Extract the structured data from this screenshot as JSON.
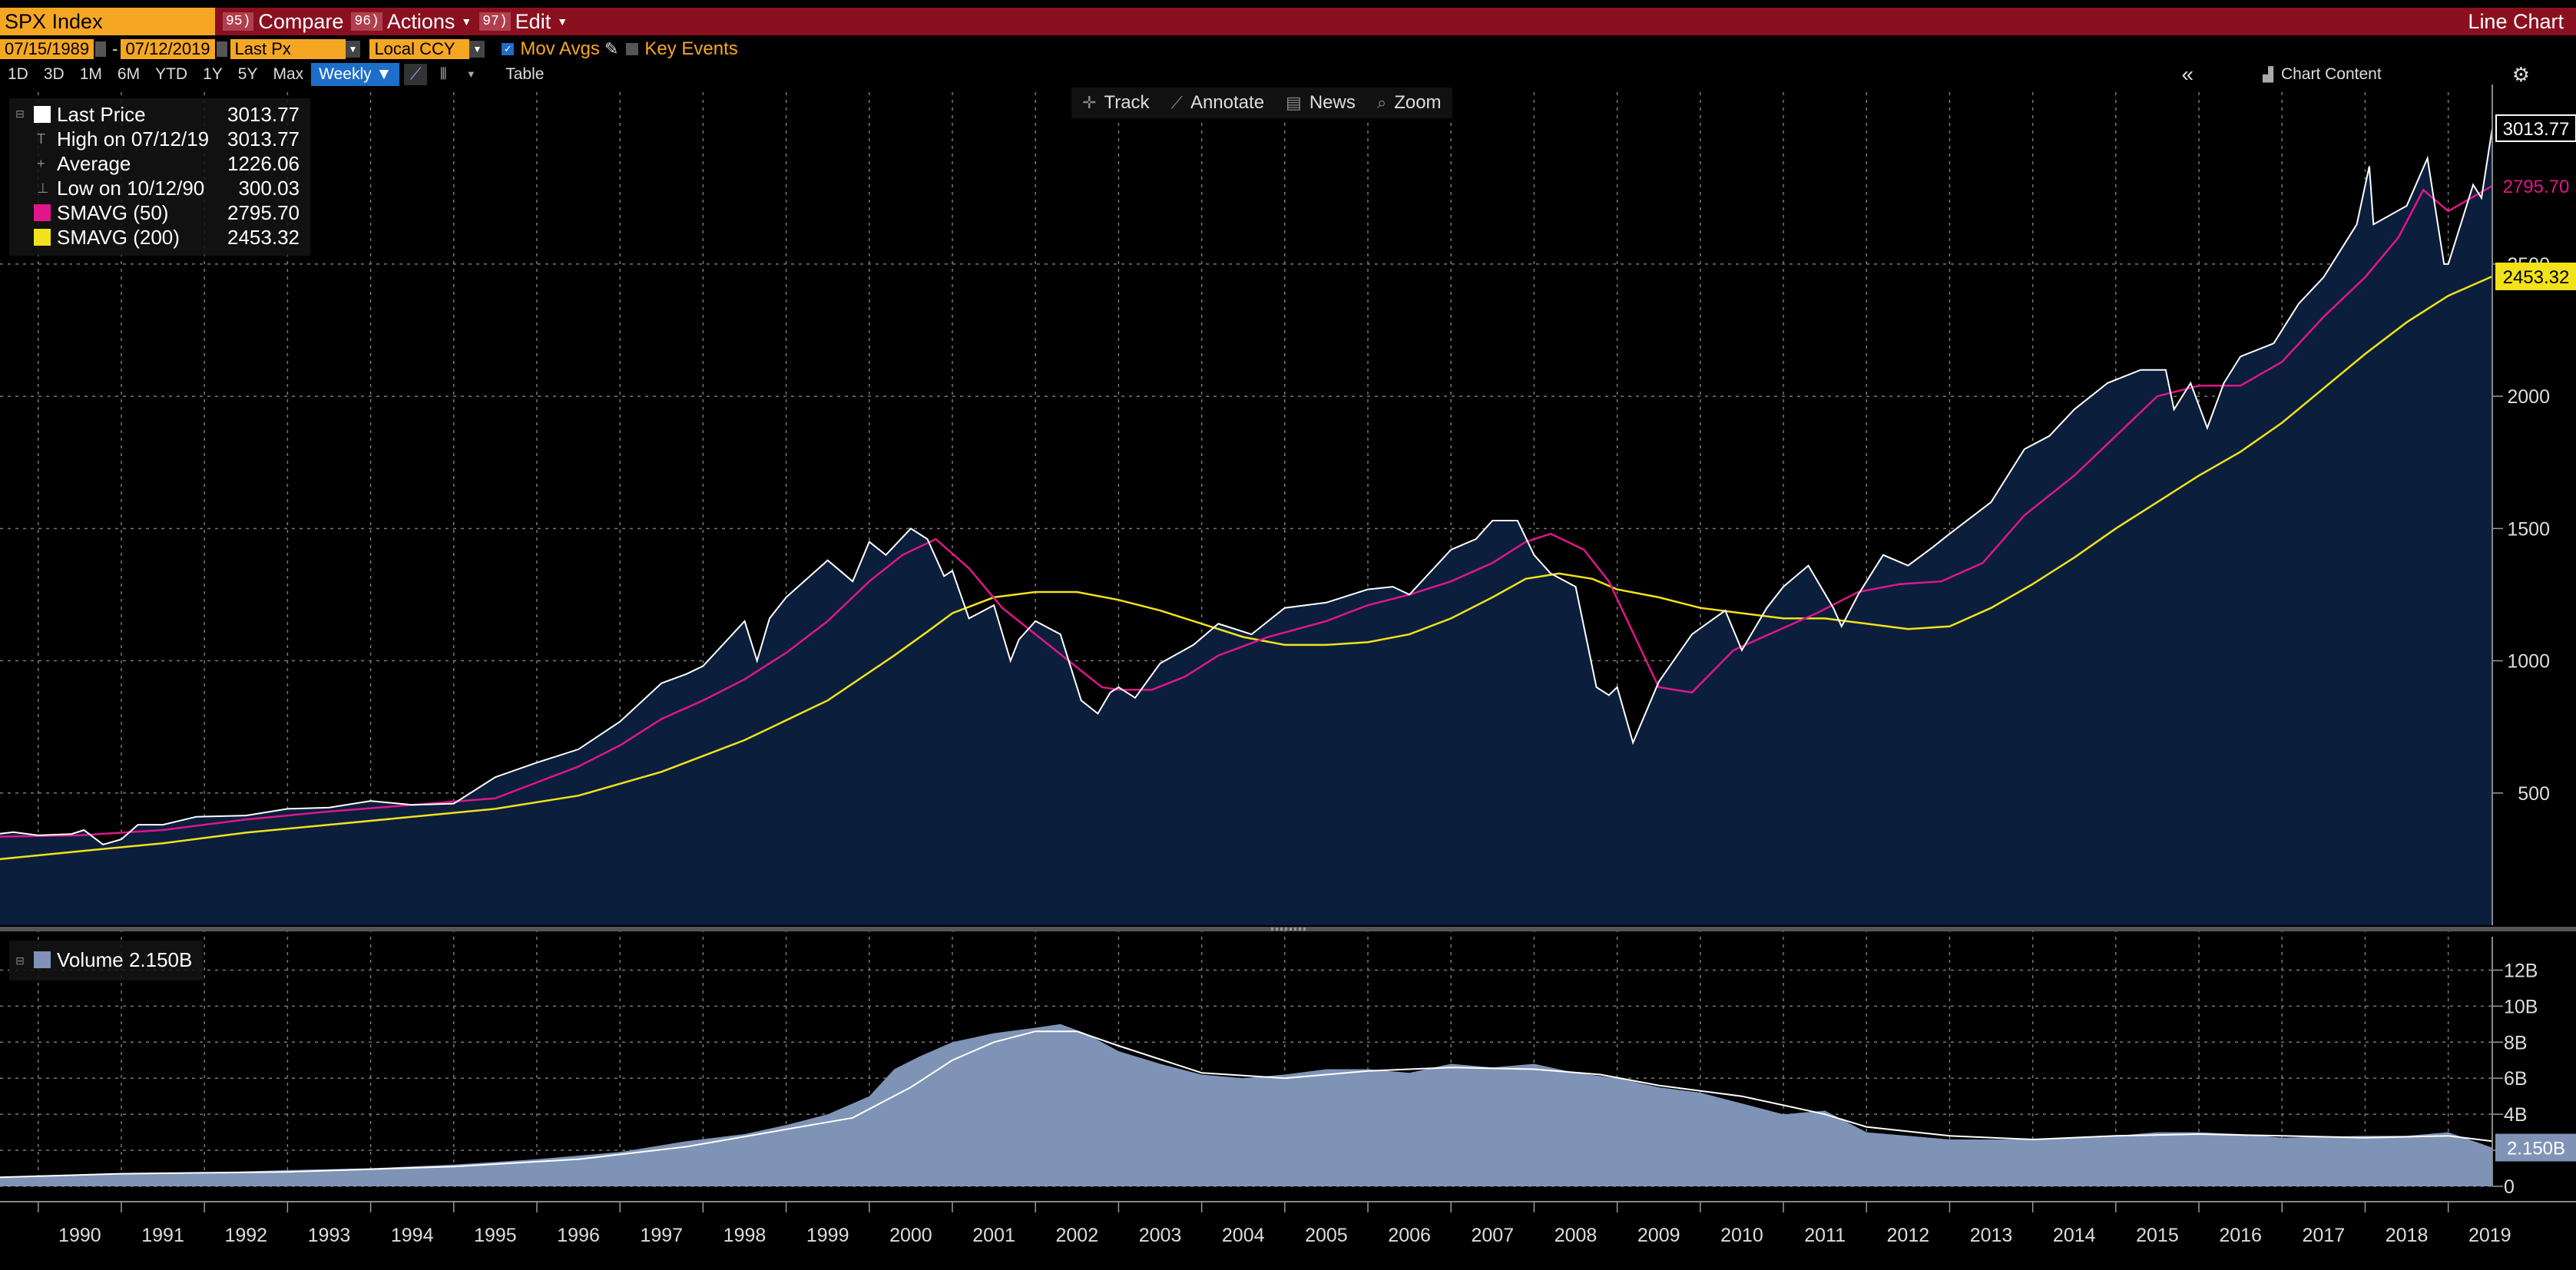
{
  "header": {
    "ticker": "SPX Index",
    "compare": {
      "num": "95)",
      "label": "Compare"
    },
    "actions": {
      "num": "96)",
      "label": "Actions"
    },
    "edit": {
      "num": "97)",
      "label": "Edit"
    },
    "chart_type": "Line Chart"
  },
  "settings": {
    "start_date": "07/15/1989",
    "end_date": "07/12/2019",
    "field": "Last Px",
    "currency": "Local CCY",
    "mov_avgs": "Mov Avgs",
    "key_events": "Key Events"
  },
  "ranges": [
    "1D",
    "3D",
    "1M",
    "6M",
    "YTD",
    "1Y",
    "5Y",
    "Max"
  ],
  "frequency": "Weekly",
  "table_label": "Table",
  "chart_content_label": "Chart Content",
  "tools": [
    "Track",
    "Annotate",
    "News",
    "Zoom"
  ],
  "legend": {
    "last_price": {
      "label": "Last Price",
      "value": "3013.77"
    },
    "high": {
      "label": "High on 07/12/19",
      "value": "3013.77"
    },
    "average": {
      "label": "Average",
      "value": "1226.06"
    },
    "low": {
      "label": "Low on 10/12/90",
      "value": "300.03"
    },
    "sma50": {
      "label": "SMAVG (50)",
      "value": "2795.70"
    },
    "sma200": {
      "label": "SMAVG (200)",
      "value": "2453.32"
    }
  },
  "volume_legend": "Volume 2.150B",
  "colors": {
    "price_line": "#ffffff",
    "price_fill": "#0b1f3d",
    "sma50": "#e0168a",
    "sma200": "#f2e21a",
    "volume": "#7f93b6",
    "accent_orange": "#f5a623",
    "command_bar": "#8a1020"
  },
  "chart_data": [
    {
      "type": "line",
      "title": "SPX Index",
      "x_ticks": [
        "1990",
        "1991",
        "1992",
        "1993",
        "1994",
        "1995",
        "1996",
        "1997",
        "1998",
        "1999",
        "2000",
        "2001",
        "2002",
        "2003",
        "2004",
        "2005",
        "2006",
        "2007",
        "2008",
        "2009",
        "2010",
        "2011",
        "2012",
        "2013",
        "2014",
        "2015",
        "2016",
        "2017",
        "2018",
        "2019"
      ],
      "x_range": [
        1989.54,
        2019.53
      ],
      "y_ticks": [
        500,
        1000,
        1500,
        2000,
        2500
      ],
      "ylim": [
        0,
        3150
      ],
      "grid": true,
      "legend_position": "top-left",
      "series": [
        {
          "name": "Last Price",
          "x": [
            1989.54,
            1989.7,
            1990.0,
            1990.4,
            1990.55,
            1990.78,
            1991.0,
            1991.2,
            1991.5,
            1991.9,
            1992.5,
            1993.0,
            1993.5,
            1994.0,
            1994.5,
            1995.0,
            1995.5,
            1996.0,
            1996.5,
            1997.0,
            1997.5,
            1997.8,
            1998.0,
            1998.5,
            1998.65,
            1998.8,
            1999.0,
            1999.5,
            1999.8,
            2000.0,
            2000.2,
            2000.5,
            2000.7,
            2000.9,
            2001.0,
            2001.2,
            2001.5,
            2001.7,
            2001.8,
            2002.0,
            2002.3,
            2002.55,
            2002.75,
            2002.9,
            2003.0,
            2003.2,
            2003.5,
            2003.9,
            2004.2,
            2004.6,
            2005.0,
            2005.5,
            2006.0,
            2006.3,
            2006.5,
            2007.0,
            2007.3,
            2007.5,
            2007.8,
            2008.0,
            2008.2,
            2008.5,
            2008.75,
            2008.9,
            2009.0,
            2009.19,
            2009.5,
            2009.9,
            2010.3,
            2010.5,
            2010.8,
            2011.0,
            2011.3,
            2011.6,
            2011.7,
            2011.9,
            2012.2,
            2012.5,
            2012.8,
            2013.0,
            2013.5,
            2013.9,
            2014.2,
            2014.5,
            2014.9,
            2015.3,
            2015.6,
            2015.7,
            2015.9,
            2016.1,
            2016.3,
            2016.5,
            2016.9,
            2017.2,
            2017.5,
            2017.9,
            2018.05,
            2018.1,
            2018.5,
            2018.75,
            2018.95,
            2019.0,
            2019.3,
            2019.4,
            2019.53
          ],
          "y": [
            346,
            352,
            340,
            345,
            360,
            305,
            325,
            380,
            380,
            410,
            415,
            440,
            445,
            470,
            455,
            460,
            560,
            615,
            665,
            770,
            915,
            950,
            980,
            1150,
            1000,
            1160,
            1240,
            1380,
            1300,
            1450,
            1400,
            1500,
            1460,
            1320,
            1340,
            1160,
            1210,
            1000,
            1080,
            1150,
            1100,
            850,
            800,
            880,
            900,
            860,
            990,
            1060,
            1140,
            1100,
            1200,
            1220,
            1270,
            1280,
            1250,
            1420,
            1460,
            1530,
            1530,
            1400,
            1330,
            1280,
            900,
            870,
            900,
            690,
            920,
            1100,
            1190,
            1040,
            1200,
            1280,
            1360,
            1200,
            1130,
            1250,
            1400,
            1360,
            1430,
            1480,
            1600,
            1800,
            1850,
            1950,
            2050,
            2100,
            2100,
            1950,
            2050,
            1880,
            2050,
            2150,
            2200,
            2350,
            2450,
            2650,
            2870,
            2650,
            2720,
            2900,
            2500,
            2500,
            2800,
            2750,
            3013.77
          ]
        },
        {
          "name": "SMAVG (50)",
          "x": [
            1989.54,
            1990.5,
            1991.5,
            1992.5,
            1993.5,
            1994.5,
            1995.5,
            1996.0,
            1996.5,
            1997.0,
            1997.5,
            1998.0,
            1998.5,
            1999.0,
            1999.5,
            2000.0,
            2000.4,
            2000.8,
            2001.2,
            2001.6,
            2002.0,
            2002.4,
            2002.8,
            2003.0,
            2003.4,
            2003.8,
            2004.2,
            2004.8,
            2005.5,
            2006.0,
            2006.5,
            2007.0,
            2007.5,
            2007.9,
            2008.2,
            2008.6,
            2008.9,
            2009.2,
            2009.5,
            2009.9,
            2010.4,
            2010.9,
            2011.4,
            2011.9,
            2012.4,
            2012.9,
            2013.4,
            2013.9,
            2014.5,
            2015.0,
            2015.5,
            2016.0,
            2016.5,
            2017.0,
            2017.5,
            2018.0,
            2018.4,
            2018.7,
            2019.0,
            2019.53
          ],
          "y": [
            335,
            340,
            360,
            400,
            430,
            455,
            480,
            540,
            600,
            680,
            780,
            850,
            930,
            1030,
            1150,
            1300,
            1400,
            1460,
            1350,
            1200,
            1100,
            1000,
            900,
            890,
            890,
            940,
            1020,
            1090,
            1150,
            1210,
            1250,
            1300,
            1370,
            1450,
            1480,
            1420,
            1300,
            1100,
            900,
            880,
            1040,
            1110,
            1180,
            1260,
            1290,
            1300,
            1370,
            1550,
            1700,
            1850,
            2000,
            2040,
            2040,
            2130,
            2300,
            2450,
            2600,
            2780,
            2700,
            2795.7
          ]
        },
        {
          "name": "SMAVG (200)",
          "x": [
            1989.54,
            1990.5,
            1991.5,
            1992.5,
            1993.5,
            1994.5,
            1995.5,
            1996.5,
            1997.5,
            1998.5,
            1999.5,
            2000.3,
            2000.7,
            2001.0,
            2001.5,
            2002.0,
            2002.5,
            2003.0,
            2003.5,
            2004.0,
            2004.5,
            2005.0,
            2005.5,
            2006.0,
            2006.5,
            2007.0,
            2007.5,
            2007.9,
            2008.3,
            2008.7,
            2009.0,
            2009.5,
            2010.0,
            2010.5,
            2011.0,
            2011.5,
            2012.0,
            2012.5,
            2013.0,
            2013.5,
            2014.0,
            2014.5,
            2015.0,
            2015.5,
            2016.0,
            2016.5,
            2017.0,
            2017.5,
            2018.0,
            2018.5,
            2019.0,
            2019.53
          ],
          "y": [
            250,
            280,
            310,
            350,
            380,
            410,
            440,
            490,
            580,
            700,
            850,
            1020,
            1110,
            1180,
            1240,
            1260,
            1260,
            1230,
            1190,
            1140,
            1090,
            1060,
            1060,
            1070,
            1100,
            1160,
            1240,
            1310,
            1330,
            1310,
            1270,
            1240,
            1200,
            1180,
            1160,
            1160,
            1140,
            1120,
            1130,
            1200,
            1290,
            1390,
            1500,
            1600,
            1700,
            1790,
            1900,
            2030,
            2160,
            2280,
            2380,
            2453.32
          ]
        }
      ]
    },
    {
      "type": "bar",
      "title": "Volume",
      "x_range": [
        1989.54,
        2019.53
      ],
      "y_ticks": [
        "0",
        "2B",
        "4B",
        "6B",
        "8B",
        "10B",
        "12B"
      ],
      "ylim": [
        0,
        13
      ],
      "grid": true,
      "series": [
        {
          "name": "Volume",
          "x": [
            1989.54,
            1990.0,
            1991.0,
            1992.0,
            1993.0,
            1994.0,
            1995.0,
            1996.0,
            1997.0,
            1997.8,
            1998.5,
            1999.0,
            1999.5,
            2000.0,
            2000.3,
            2000.6,
            2001.0,
            2001.5,
            2002.0,
            2002.3,
            2002.6,
            2003.0,
            2003.5,
            2004.0,
            2004.5,
            2005.0,
            2005.5,
            2006.0,
            2006.5,
            2007.0,
            2007.5,
            2008.0,
            2008.5,
            2009.0,
            2009.5,
            2010.0,
            2010.5,
            2011.0,
            2011.5,
            2012.0,
            2012.5,
            2013.0,
            2014.0,
            2015.0,
            2015.5,
            2016.0,
            2016.5,
            2017.0,
            2018.0,
            2018.5,
            2019.0,
            2019.53
          ],
          "y": [
            0.5,
            0.6,
            0.7,
            0.75,
            0.9,
            1.0,
            1.2,
            1.5,
            1.9,
            2.5,
            2.9,
            3.4,
            4.0,
            5.0,
            6.5,
            7.2,
            8.0,
            8.5,
            8.8,
            9.0,
            8.5,
            7.5,
            6.8,
            6.2,
            6.0,
            6.2,
            6.5,
            6.5,
            6.3,
            6.8,
            6.6,
            6.8,
            6.3,
            6.0,
            5.5,
            5.2,
            4.6,
            4.0,
            4.2,
            3.0,
            2.8,
            2.6,
            2.6,
            2.8,
            3.0,
            3.0,
            2.9,
            2.7,
            2.8,
            2.8,
            3.0,
            2.15
          ]
        },
        {
          "name": "Volume MA",
          "x": [
            1989.54,
            1991.0,
            1993.0,
            1995.0,
            1996.5,
            1997.8,
            1998.8,
            1999.8,
            2000.5,
            2001.0,
            2001.5,
            2002.0,
            2002.5,
            2003.0,
            2004.0,
            2005.0,
            2006.0,
            2007.0,
            2008.0,
            2008.8,
            2009.5,
            2010.5,
            2011.0,
            2011.5,
            2012.0,
            2013.0,
            2014.0,
            2015.0,
            2016.0,
            2017.0,
            2018.0,
            2019.0,
            2019.53
          ],
          "y": [
            0.5,
            0.7,
            0.8,
            1.1,
            1.5,
            2.2,
            3.0,
            3.8,
            5.5,
            7.0,
            8.0,
            8.6,
            8.6,
            7.8,
            6.3,
            6.0,
            6.4,
            6.6,
            6.5,
            6.2,
            5.6,
            5.0,
            4.5,
            4.0,
            3.3,
            2.8,
            2.6,
            2.8,
            2.9,
            2.8,
            2.7,
            2.8,
            2.5
          ]
        }
      ]
    }
  ],
  "price_labels": {
    "last": "3013.77",
    "sma50": "2795.70",
    "sma200": "2453.32",
    "volume": "2.150B"
  }
}
